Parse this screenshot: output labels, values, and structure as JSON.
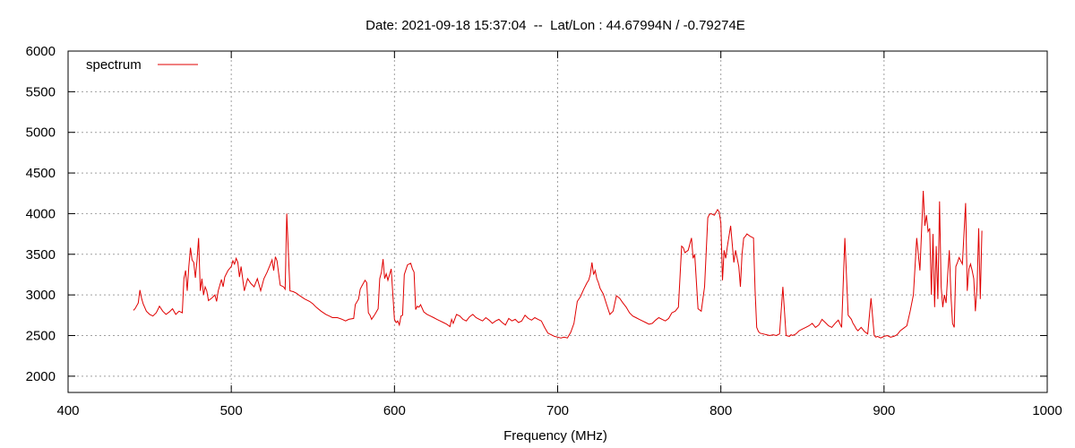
{
  "chart_data": {
    "type": "line",
    "title": "Date: 2021-09-18 15:37:04  --  Lat/Lon : 44.67994N / -0.79274E",
    "xlabel": "Frequency (MHz)",
    "ylabel": "",
    "xlim": [
      400,
      1000
    ],
    "ylim": [
      1800,
      6000
    ],
    "xticks": [
      400,
      500,
      600,
      700,
      800,
      900,
      1000
    ],
    "yticks": [
      2000,
      2500,
      3000,
      3500,
      4000,
      4500,
      5000,
      5500,
      6000
    ],
    "grid": true,
    "legend_position": "top-left",
    "colors": {
      "series": "#e00000"
    },
    "series": [
      {
        "name": "spectrum",
        "x": [
          440,
          441,
          443,
          444,
          445,
          446,
          448,
          450,
          452,
          454,
          455,
          456,
          458,
          460,
          462,
          464,
          466,
          468,
          470,
          471,
          472,
          473,
          474,
          475,
          476,
          477,
          478,
          479,
          480,
          481,
          482,
          483,
          484,
          485,
          486,
          488,
          490,
          491,
          492,
          494,
          495,
          496,
          498,
          500,
          501,
          502,
          503,
          504,
          505,
          506,
          508,
          510,
          512,
          514,
          516,
          518,
          520,
          522,
          524,
          525,
          526,
          527,
          528,
          530,
          532,
          533,
          534,
          536,
          538,
          540,
          542,
          545,
          548,
          550,
          552,
          555,
          558,
          560,
          562,
          565,
          568,
          570,
          572,
          575,
          576,
          578,
          579,
          580,
          582,
          583,
          584,
          585,
          586,
          588,
          590,
          591,
          592,
          593,
          594,
          595,
          596,
          598,
          600,
          601,
          602,
          603,
          604,
          605,
          606,
          608,
          610,
          611,
          612,
          613,
          614,
          615,
          616,
          618,
          620,
          622,
          624,
          626,
          628,
          630,
          632,
          634,
          635,
          636,
          638,
          640,
          642,
          644,
          646,
          648,
          650,
          652,
          654,
          656,
          658,
          660,
          662,
          664,
          666,
          668,
          670,
          672,
          674,
          676,
          678,
          680,
          682,
          684,
          686,
          688,
          690,
          692,
          694,
          696,
          698,
          700,
          702,
          704,
          706,
          708,
          710,
          712,
          714,
          716,
          718,
          719,
          720,
          721,
          722,
          723,
          724,
          725,
          726,
          728,
          730,
          732,
          734,
          736,
          738,
          740,
          742,
          744,
          746,
          748,
          750,
          752,
          754,
          756,
          758,
          760,
          762,
          764,
          766,
          768,
          770,
          772,
          774,
          776,
          777,
          778,
          780,
          782,
          783,
          784,
          786,
          788,
          790,
          792,
          793,
          794,
          796,
          798,
          799,
          800,
          801,
          802,
          803,
          804,
          806,
          808,
          809,
          810,
          811,
          812,
          813,
          814,
          815,
          816,
          818,
          820,
          821,
          822,
          823,
          824,
          826,
          828,
          830,
          832,
          834,
          836,
          838,
          840,
          842,
          843,
          844,
          846,
          848,
          850,
          852,
          854,
          856,
          858,
          860,
          862,
          864,
          866,
          868,
          870,
          872,
          874,
          876,
          878,
          880,
          881,
          882,
          883,
          884,
          886,
          888,
          890,
          892,
          894,
          895,
          896,
          898,
          900,
          902,
          904,
          906,
          908,
          910,
          912,
          914,
          916,
          918,
          920,
          922,
          924,
          925,
          926,
          927,
          928,
          929,
          930,
          931,
          932,
          933,
          934,
          935,
          936,
          937,
          938,
          939,
          940,
          941,
          942,
          943,
          944,
          945,
          946,
          948,
          950,
          951,
          952,
          953,
          954,
          955,
          956,
          957,
          958,
          959,
          960
        ],
        "values": [
          2810,
          2830,
          2900,
          3060,
          2960,
          2890,
          2800,
          2760,
          2740,
          2780,
          2820,
          2860,
          2800,
          2760,
          2790,
          2830,
          2760,
          2800,
          2780,
          3200,
          3300,
          3050,
          3350,
          3580,
          3430,
          3400,
          3210,
          3420,
          3700,
          3050,
          3200,
          3000,
          3100,
          3050,
          2930,
          2960,
          3000,
          2920,
          3050,
          3190,
          3100,
          3220,
          3300,
          3350,
          3420,
          3380,
          3450,
          3400,
          3220,
          3350,
          3050,
          3200,
          3140,
          3100,
          3200,
          3050,
          3200,
          3280,
          3380,
          3430,
          3300,
          3470,
          3420,
          3120,
          3100,
          3070,
          4000,
          3050,
          3040,
          3020,
          2990,
          2950,
          2920,
          2890,
          2850,
          2800,
          2760,
          2740,
          2720,
          2720,
          2700,
          2680,
          2700,
          2710,
          2880,
          2950,
          3070,
          3110,
          3180,
          3150,
          2780,
          2750,
          2700,
          2760,
          2830,
          3200,
          3280,
          3440,
          3200,
          3260,
          3180,
          3320,
          2700,
          2660,
          2680,
          2630,
          2740,
          2750,
          3250,
          3370,
          3390,
          3320,
          3280,
          2820,
          2860,
          2850,
          2880,
          2790,
          2760,
          2740,
          2720,
          2700,
          2680,
          2660,
          2640,
          2610,
          2700,
          2650,
          2760,
          2740,
          2700,
          2680,
          2730,
          2760,
          2720,
          2700,
          2680,
          2720,
          2690,
          2650,
          2680,
          2700,
          2660,
          2630,
          2710,
          2680,
          2700,
          2660,
          2680,
          2750,
          2710,
          2690,
          2720,
          2700,
          2680,
          2600,
          2530,
          2510,
          2490,
          2480,
          2470,
          2480,
          2470,
          2540,
          2650,
          2920,
          2980,
          3070,
          3150,
          3180,
          3250,
          3400,
          3250,
          3300,
          3200,
          3150,
          3080,
          3010,
          2880,
          2760,
          2800,
          2990,
          2960,
          2900,
          2850,
          2780,
          2740,
          2720,
          2700,
          2680,
          2660,
          2640,
          2650,
          2690,
          2720,
          2700,
          2680,
          2710,
          2780,
          2800,
          2850,
          3600,
          3580,
          3520,
          3550,
          3700,
          3450,
          3500,
          2830,
          2800,
          3100,
          3950,
          3990,
          4000,
          3980,
          4050,
          4020,
          3880,
          3180,
          3550,
          3450,
          3600,
          3850,
          3400,
          3550,
          3450,
          3350,
          3100,
          3500,
          3700,
          3720,
          3750,
          3720,
          3700,
          3050,
          2600,
          2550,
          2530,
          2520,
          2510,
          2500,
          2510,
          2500,
          2520,
          3100,
          2500,
          2490,
          2510,
          2500,
          2520,
          2560,
          2580,
          2600,
          2620,
          2650,
          2600,
          2630,
          2700,
          2660,
          2620,
          2600,
          2650,
          2690,
          2600,
          3700,
          2750,
          2700,
          2650,
          2620,
          2580,
          2560,
          2600,
          2550,
          2520,
          2960,
          2500,
          2480,
          2490,
          2470,
          2490,
          2500,
          2480,
          2490,
          2510,
          2560,
          2590,
          2620,
          2800,
          3000,
          3700,
          3300,
          4280,
          3850,
          3980,
          3780,
          3820,
          3000,
          3750,
          2850,
          3600,
          2950,
          4150,
          3100,
          2850,
          3000,
          2900,
          3250,
          3550,
          3000,
          2650,
          2600,
          3350,
          3400,
          3460,
          3380,
          4130,
          3050,
          3320,
          3380,
          3300,
          3200,
          2800,
          3100,
          3820,
          2950,
          3790
        ]
      }
    ]
  }
}
